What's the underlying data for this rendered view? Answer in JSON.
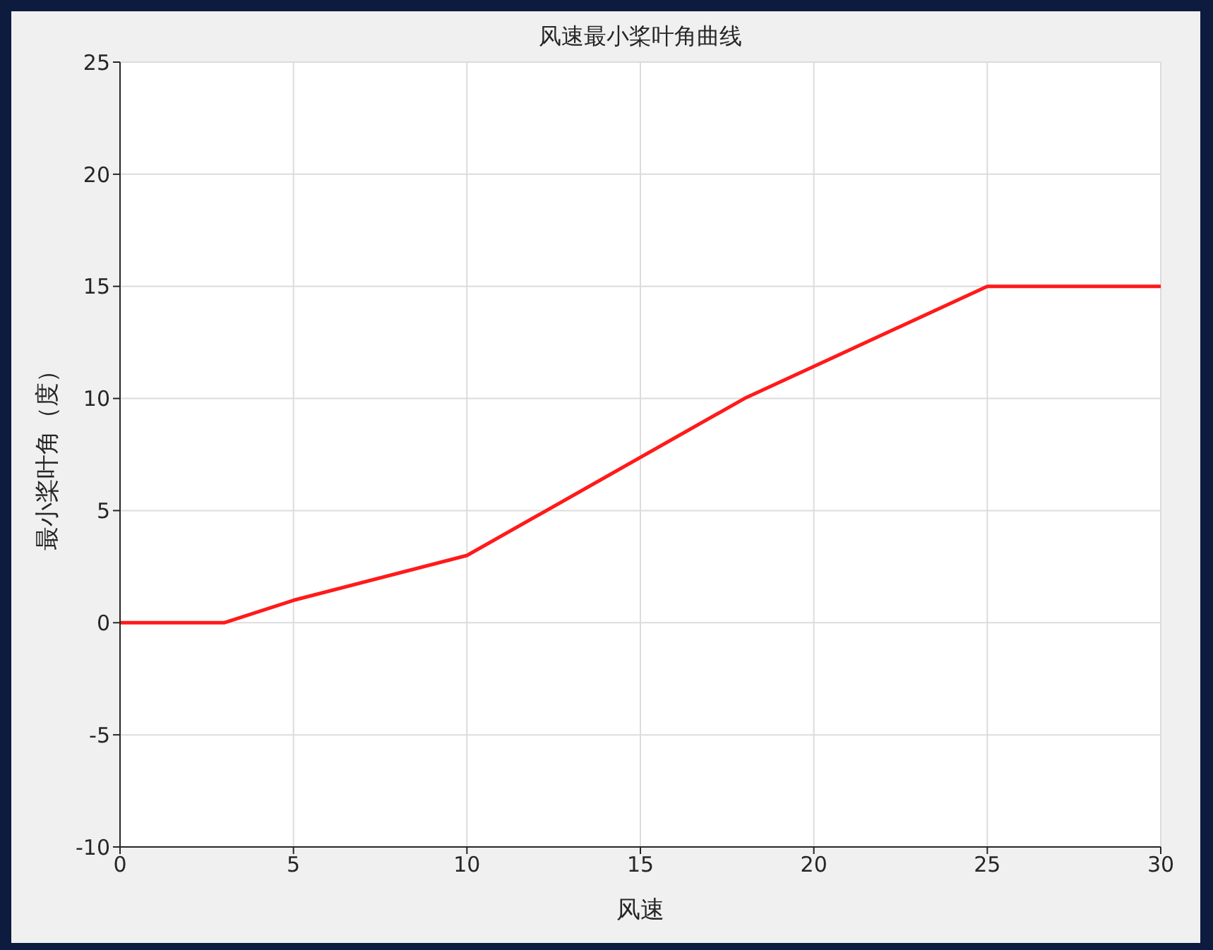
{
  "chart_data": {
    "type": "line",
    "title": "风速最小桨叶角曲线",
    "xlabel": "风速",
    "ylabel": "最小桨叶角（度）",
    "x": [
      0,
      3,
      5,
      10,
      18,
      25,
      30
    ],
    "series": [
      {
        "color": "#ff1a1a",
        "values": [
          0,
          0,
          1,
          3,
          10,
          15,
          15
        ]
      }
    ],
    "xlim": [
      0,
      30
    ],
    "xticks": [
      0,
      5,
      10,
      15,
      20,
      25,
      30
    ],
    "ylim": [
      -10,
      25
    ],
    "yticks": [
      -10,
      -5,
      0,
      5,
      10,
      15,
      20,
      25
    ],
    "grid": true,
    "marker": "none",
    "line_style": "solid"
  }
}
